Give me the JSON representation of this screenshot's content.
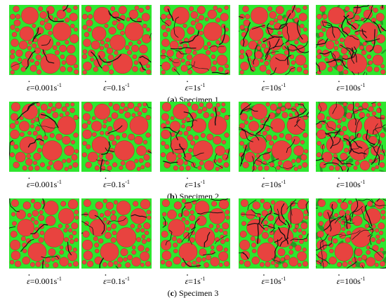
{
  "rows": [
    {
      "caption_letter": "a",
      "caption_text": " Specimen 1",
      "panels": [
        {
          "label": "=0.001",
          "unit": "s",
          "exp": "-1",
          "damage": 1
        },
        {
          "label": "=0.1",
          "unit": "s",
          "exp": "-1",
          "damage": 1
        },
        {
          "label": "=1",
          "unit": "s",
          "exp": "-1",
          "damage": 2
        },
        {
          "label": "=10",
          "unit": "s",
          "exp": "-1",
          "damage": 3
        },
        {
          "label": "=100",
          "unit": "s",
          "exp": "-1",
          "damage": 4
        }
      ]
    },
    {
      "caption_letter": "b",
      "caption_text": " Specimen 2",
      "panels": [
        {
          "label": "=0.001",
          "unit": "s",
          "exp": "-1",
          "damage": 1
        },
        {
          "label": "=0.1",
          "unit": "s",
          "exp": "-1",
          "damage": 1
        },
        {
          "label": "=1",
          "unit": "s",
          "exp": "-1",
          "damage": 2
        },
        {
          "label": "=10",
          "unit": "s",
          "exp": "-1",
          "damage": 3
        },
        {
          "label": "=100",
          "unit": "s",
          "exp": "-1",
          "damage": 4
        }
      ]
    },
    {
      "caption_letter": "c",
      "caption_text": " Specimen 3",
      "panels": [
        {
          "label": "=0.001",
          "unit": "s",
          "exp": "-1",
          "damage": 1
        },
        {
          "label": "=0.1",
          "unit": "s",
          "exp": "-1",
          "damage": 1
        },
        {
          "label": "=1",
          "unit": "s",
          "exp": "-1",
          "damage": 2
        },
        {
          "label": "=10",
          "unit": "s",
          "exp": "-1",
          "damage": 3
        },
        {
          "label": "=100",
          "unit": "s",
          "exp": "-1",
          "damage": 4
        }
      ]
    }
  ],
  "symbol": "ε",
  "colors": {
    "matrix": "#2ee62e",
    "aggregate": "#e8433f",
    "aggregate_edge": "#b82424",
    "crack": "#111111",
    "damage_dark": "#1f6b1f"
  }
}
